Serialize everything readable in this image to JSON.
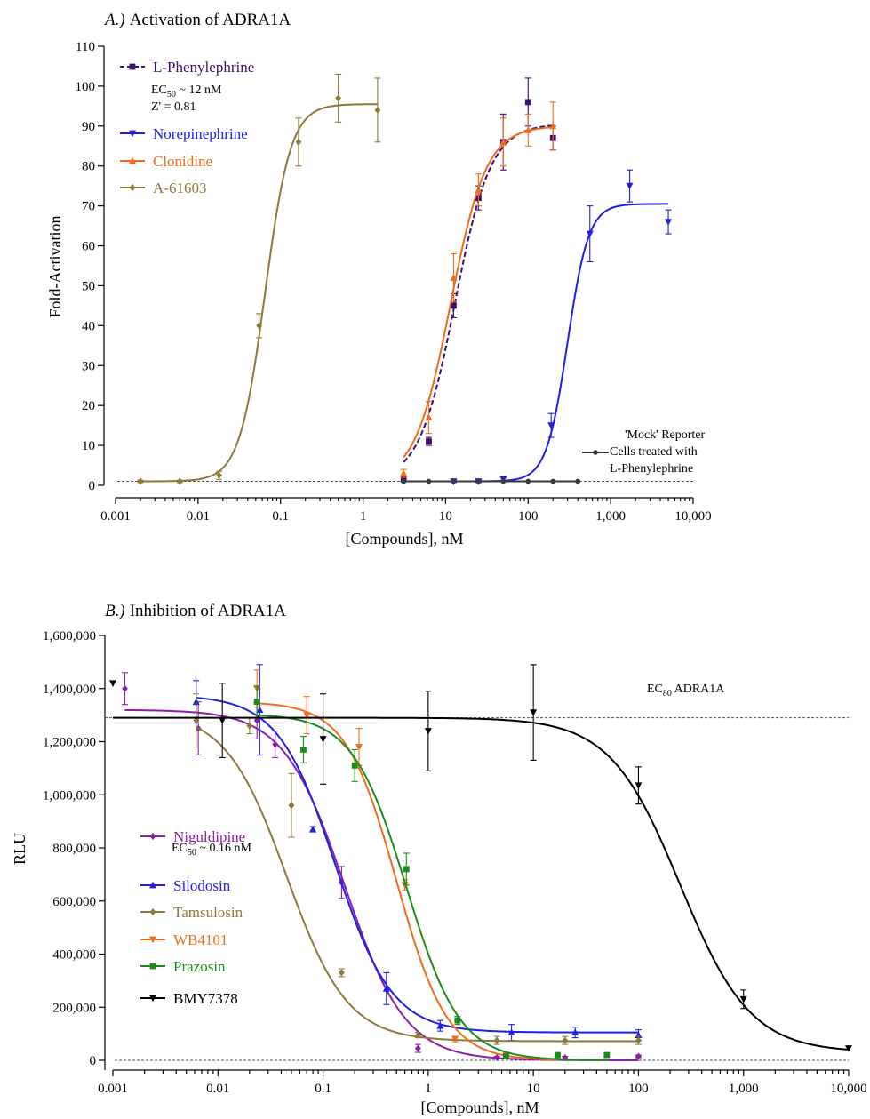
{
  "chart_data": [
    {
      "type": "scatter",
      "panel": "A",
      "title_prefix": "A.)",
      "title": "Activation of ADRA1A",
      "xlabel": "[Compounds], nM",
      "ylabel": "Fold-Activation",
      "xscale": "log",
      "xlim": [
        0.001,
        10000
      ],
      "ylim": [
        0,
        110
      ],
      "x_ticks": [
        0.001,
        0.01,
        0.1,
        1,
        10,
        100,
        1000,
        10000
      ],
      "x_tick_labels": [
        "0.001",
        "0.01",
        "0.1",
        "1",
        "10",
        "100",
        "1,000",
        "10,000"
      ],
      "y_ticks": [
        0,
        10,
        20,
        30,
        40,
        50,
        60,
        70,
        80,
        90,
        100,
        110
      ],
      "y_tick_labels": [
        "0",
        "10",
        "20",
        "30",
        "40",
        "50",
        "60",
        "70",
        "80",
        "90",
        "100",
        "110"
      ],
      "legend_position": "top-left",
      "annotation_ec50": "EC50 ~ 12 nM",
      "annotation_z": "Z' = 0.81",
      "mock_label_lines": [
        "'Mock' Reporter",
        "Cells treated with",
        "L-Phenylephrine"
      ],
      "baseline": 1,
      "series": [
        {
          "name": "L-Phenylephrine",
          "color": "#3b0f6b",
          "marker": "square",
          "dashed": true,
          "fit": {
            "bottom": 1,
            "top": 90.5,
            "ec50": 13,
            "hill": 2.0
          },
          "x": [
            3.1,
            6.25,
            12.5,
            25,
            50,
            100,
            200
          ],
          "y": [
            1.5,
            11,
            45,
            72,
            86,
            96,
            87
          ],
          "err": [
            0.5,
            1,
            3,
            3,
            7,
            6,
            3
          ]
        },
        {
          "name": "Norepinephrine",
          "color": "#1f1fe0",
          "marker": "triangle-down",
          "dashed": false,
          "fit": {
            "bottom": 1,
            "top": 70.5,
            "ec50": 300,
            "hill": 3.4
          },
          "x": [
            12.5,
            25,
            50,
            190,
            560,
            1700,
            5000
          ],
          "y": [
            1,
            1,
            1.5,
            15,
            63,
            75,
            66
          ],
          "err": [
            0.3,
            0.3,
            0.5,
            3,
            7,
            4,
            3
          ]
        },
        {
          "name": "Clonidine",
          "color": "#f26b1a",
          "marker": "triangle-up",
          "dashed": false,
          "fit": {
            "bottom": 1,
            "top": 90,
            "ec50": 11.5,
            "hill": 2.0
          },
          "x": [
            3.1,
            6.25,
            12.5,
            25,
            50,
            100,
            200
          ],
          "y": [
            3,
            17,
            52,
            74,
            86,
            89,
            90
          ],
          "err": [
            1,
            4,
            6,
            4,
            6,
            4,
            6
          ]
        },
        {
          "name": "A-61603",
          "color": "#8c7a3a",
          "marker": "diamond",
          "dashed": false,
          "fit": {
            "bottom": 1,
            "top": 95.5,
            "ec50": 0.065,
            "hill": 2.8
          },
          "x": [
            0.002,
            0.006,
            0.018,
            0.055,
            0.165,
            0.5,
            1.5
          ],
          "y": [
            1,
            1,
            2.5,
            40,
            86,
            97,
            94
          ],
          "err": [
            0.3,
            0.3,
            1,
            3,
            6,
            6,
            8
          ]
        },
        {
          "name": "Mock",
          "color": "#3a3a3a",
          "marker": "circle",
          "dashed": false,
          "x": [
            3.1,
            6.25,
            12.5,
            25,
            50,
            100,
            200,
            400
          ],
          "y": [
            1,
            1,
            1,
            1,
            1,
            1,
            1,
            1
          ],
          "err": [
            0,
            0,
            0,
            0,
            0,
            0,
            0,
            0
          ]
        }
      ]
    },
    {
      "type": "scatter",
      "panel": "B",
      "title_prefix": "B.)",
      "title": "Inhibition of ADRA1A",
      "xlabel": "[Compounds], nM",
      "ylabel": "RLU",
      "xscale": "log",
      "xlim": [
        0.001,
        10000
      ],
      "ylim": [
        0,
        1600000
      ],
      "x_ticks": [
        0.001,
        0.01,
        0.1,
        1,
        10,
        100,
        1000,
        10000
      ],
      "x_tick_labels": [
        "0.001",
        "0.01",
        "0.1",
        "1",
        "10",
        "100",
        "1,000",
        "10,000"
      ],
      "y_ticks": [
        0,
        200000,
        400000,
        600000,
        800000,
        1000000,
        1200000,
        1400000,
        1600000
      ],
      "y_tick_labels": [
        "0",
        "200,000",
        "400,000",
        "600,000",
        "800,000",
        "1,000,000",
        "1,200,000",
        "1,400,000",
        "1,600,000"
      ],
      "legend_position": "bottom-left",
      "annotation_ec50": "EC50 ~ 0.16 nM",
      "ec80_label": "EC80 ADRA1A",
      "ec80_value": 1290000,
      "baseline": 0,
      "series": [
        {
          "name": "Niguldipine",
          "color": "#8a1fa8",
          "marker": "diamond",
          "fit": {
            "top": 1320000,
            "bottom": 0,
            "ic50": 0.16,
            "hill": 1.5
          },
          "x": [
            0.0013,
            0.0065,
            0.0235,
            0.035,
            0.15,
            0.8,
            4.5,
            20,
            100
          ],
          "y": [
            1400000,
            1250000,
            1280000,
            1190000,
            670000,
            45000,
            10000,
            10000,
            15000
          ],
          "err": [
            60000,
            100000,
            70000,
            50000,
            60000,
            15000,
            5000,
            5000,
            5000
          ]
        },
        {
          "name": "Silodosin",
          "color": "#1f1fe0",
          "marker": "triangle-up",
          "fit": {
            "top": 1375000,
            "bottom": 105000,
            "ic50": 0.13,
            "hill": 1.6
          },
          "x": [
            0.0062,
            0.025,
            0.08,
            0.4,
            1.3,
            6.2,
            25,
            100
          ],
          "y": [
            1350000,
            1320000,
            870000,
            270000,
            130000,
            105000,
            105000,
            95000
          ],
          "err": [
            80000,
            170000,
            10000,
            60000,
            20000,
            30000,
            20000,
            20000
          ]
        },
        {
          "name": "Tamsulosin",
          "color": "#8c7a3a",
          "marker": "diamond",
          "fit": {
            "top": 1315000,
            "bottom": 72000,
            "ic50": 0.045,
            "hill": 1.5
          },
          "x": [
            0.0062,
            0.02,
            0.05,
            0.15,
            0.8,
            4.5,
            20,
            100
          ],
          "y": [
            1280000,
            1260000,
            960000,
            330000,
            95000,
            75000,
            75000,
            75000
          ],
          "err": [
            100000,
            30000,
            120000,
            15000,
            10000,
            15000,
            15000,
            15000
          ]
        },
        {
          "name": "WB4101",
          "color": "#f26b1a",
          "marker": "triangle-down",
          "fit": {
            "top": 1350000,
            "bottom": 0,
            "ic50": 0.5,
            "hill": 1.8
          },
          "x": [
            0.0235,
            0.07,
            0.22,
            0.6,
            1.8,
            5.5,
            17
          ],
          "y": [
            1400000,
            1300000,
            1180000,
            660000,
            80000,
            20000,
            15000
          ],
          "err": [
            70000,
            70000,
            70000,
            20000,
            10000,
            5000,
            5000
          ]
        },
        {
          "name": "Prazosin",
          "color": "#1e8a1e",
          "marker": "square",
          "fit": {
            "top": 1305000,
            "bottom": 0,
            "ic50": 0.62,
            "hill": 1.7
          },
          "x": [
            0.0235,
            0.065,
            0.2,
            0.62,
            1.9,
            5.5,
            17,
            50
          ],
          "y": [
            1350000,
            1170000,
            1110000,
            720000,
            150000,
            15000,
            20000,
            20000
          ],
          "err": [
            60000,
            50000,
            60000,
            60000,
            15000,
            5000,
            5000,
            5000
          ]
        },
        {
          "name": "BMY7378",
          "color": "#000000",
          "marker": "triangle-down",
          "fit": {
            "top": 1290000,
            "bottom": 30000,
            "ic50": 250,
            "hill": 1.3
          },
          "x": [
            0.001,
            0.011,
            0.1,
            1.0,
            10,
            100,
            1000,
            10000
          ],
          "y": [
            1420000,
            1280000,
            1210000,
            1240000,
            1310000,
            1035000,
            230000,
            45000
          ],
          "err": [
            0,
            140000,
            170000,
            150000,
            180000,
            70000,
            35000,
            0
          ]
        }
      ]
    }
  ]
}
